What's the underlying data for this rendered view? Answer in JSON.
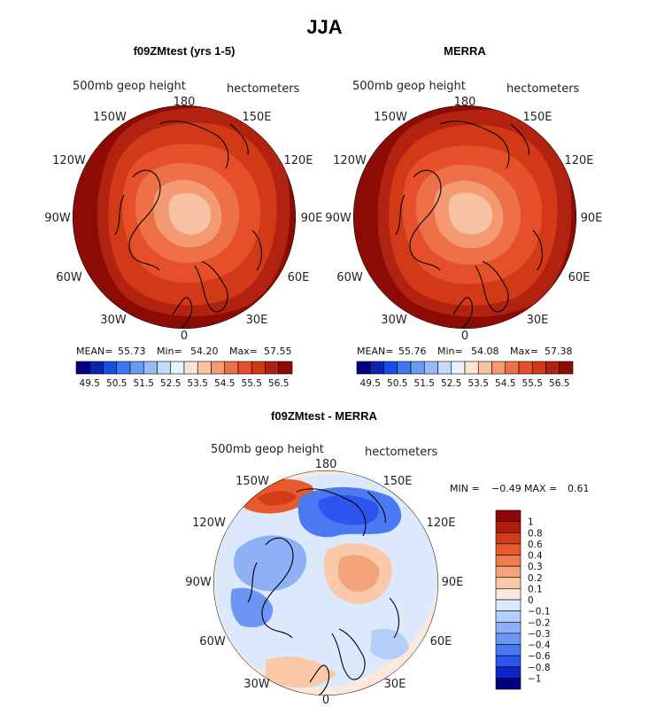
{
  "page": {
    "title": "JJA"
  },
  "colors": {
    "seq": [
      "#000080",
      "#0a24b4",
      "#1b4de6",
      "#3d78f0",
      "#6b9cf3",
      "#98bcf5",
      "#c6dafb",
      "#e8f1fd",
      "#fde5d6",
      "#f8c2a4",
      "#f49a72",
      "#ee7047",
      "#e5502a",
      "#d23a17",
      "#b12211",
      "#8c0c05"
    ],
    "diff": [
      "#000080",
      "#0b25c8",
      "#2d55ee",
      "#4a79f1",
      "#6d95f3",
      "#8fb0f6",
      "#b5cdf9",
      "#dce9fc",
      "#fde9dc",
      "#f9c9a9",
      "#f4a37a",
      "#ef7c4e",
      "#e65a2b",
      "#d23c17",
      "#b11d0b",
      "#8e0706"
    ]
  },
  "panels": [
    {
      "title": "f09ZMtest (yrs 1-5)",
      "field_label": "500mb geop height",
      "units": "hectometers",
      "stats": {
        "mean_label": "MEAN=",
        "mean": "55.73",
        "min_label": "Min=",
        "min": "54.20",
        "max_label": "Max=",
        "max": "57.55"
      },
      "colorbar_ticks": [
        "49.5",
        "50.5",
        "51.5",
        "52.5",
        "53.5",
        "54.5",
        "55.5",
        "56.5"
      ]
    },
    {
      "title": "MERRA",
      "field_label": "500mb geop height",
      "units": "hectometers",
      "stats": {
        "mean_label": "MEAN=",
        "mean": "55.76",
        "min_label": "Min=",
        "min": "54.08",
        "max_label": "Max=",
        "max": "57.38"
      },
      "colorbar_ticks": [
        "49.5",
        "50.5",
        "51.5",
        "52.5",
        "53.5",
        "54.5",
        "55.5",
        "56.5"
      ]
    }
  ],
  "diff_panel": {
    "title": "f09ZMtest - MERRA",
    "field_label": "500mb geop height",
    "units": "hectometers",
    "min_label": "MIN =",
    "min": "−0.49",
    "max_label": "MAX =",
    "max": "0.61",
    "colorbar_ticks": [
      "1",
      "0.8",
      "0.6",
      "0.4",
      "0.3",
      "0.2",
      "0.1",
      "0",
      "−0.1",
      "−0.2",
      "−0.3",
      "−0.4",
      "−0.6",
      "−0.8",
      "−1"
    ]
  },
  "lon_labels": {
    "l180": "180",
    "l150e": "150E",
    "l120e": "120E",
    "l90e": "90E",
    "l60e": "60E",
    "l30e": "30E",
    "l0": "0",
    "l30w": "30W",
    "l60w": "60W",
    "l90w": "90W",
    "l120w": "120W",
    "l150w": "150W"
  }
}
